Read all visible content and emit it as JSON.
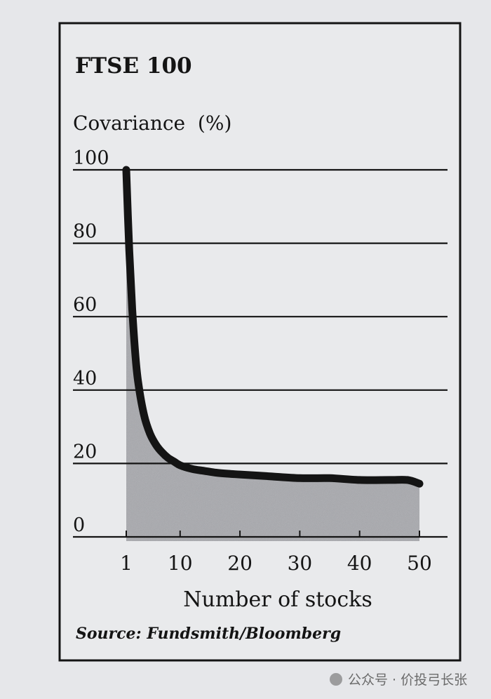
{
  "chart_data": {
    "type": "area",
    "title": "FTSE 100",
    "ylabel": "Covariance  (%)",
    "xlabel": "Number of stocks",
    "source": "Source: Fundsmith/Bloomberg",
    "x_ticks": [
      1,
      10,
      20,
      30,
      40,
      50
    ],
    "y_ticks": [
      0,
      20,
      40,
      60,
      80,
      100
    ],
    "xlim": [
      1,
      50
    ],
    "ylim": [
      0,
      100
    ],
    "grid": "horizontal",
    "series": [
      {
        "x": [
          1,
          1.5,
          2,
          2.5,
          3,
          4,
          5,
          6,
          7,
          8,
          9,
          10,
          12,
          14,
          16,
          18,
          20,
          25,
          30,
          35,
          40,
          45,
          48,
          50
        ],
        "y": [
          100,
          78,
          62,
          50,
          42,
          33,
          28,
          25,
          23,
          21.5,
          20.5,
          19.5,
          18.5,
          18,
          17.5,
          17.2,
          17,
          16.5,
          16,
          16,
          15.5,
          15.5,
          15.5,
          14.5
        ]
      }
    ]
  },
  "watermark": "公众号 · 价投弓长张",
  "colors": {
    "background": "#e6e7ea",
    "panel": "#e9eaec",
    "ink": "#141414",
    "area_fill": "#a6a7ac"
  }
}
